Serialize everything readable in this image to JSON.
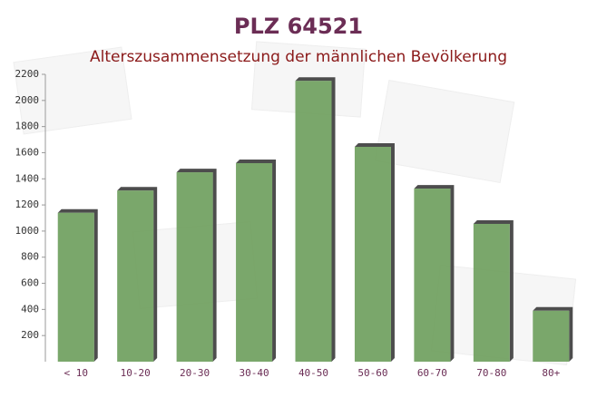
{
  "chart_data": {
    "type": "bar",
    "title": "PLZ 64521",
    "subtitle": "Alterszusammensetzung der männlichen Bevölkerung",
    "categories": [
      "< 10",
      "10-20",
      "20-30",
      "30-40",
      "40-50",
      "50-60",
      "60-70",
      "70-80",
      "80+"
    ],
    "values": [
      1140,
      1310,
      1450,
      1520,
      2150,
      1645,
      1325,
      1055,
      390
    ],
    "color": "#6f9f5e",
    "ylim": [
      0,
      2200
    ],
    "yticks": [
      200,
      400,
      600,
      800,
      1000,
      1200,
      1400,
      1600,
      1800,
      2000,
      2200
    ],
    "grid": false
  }
}
